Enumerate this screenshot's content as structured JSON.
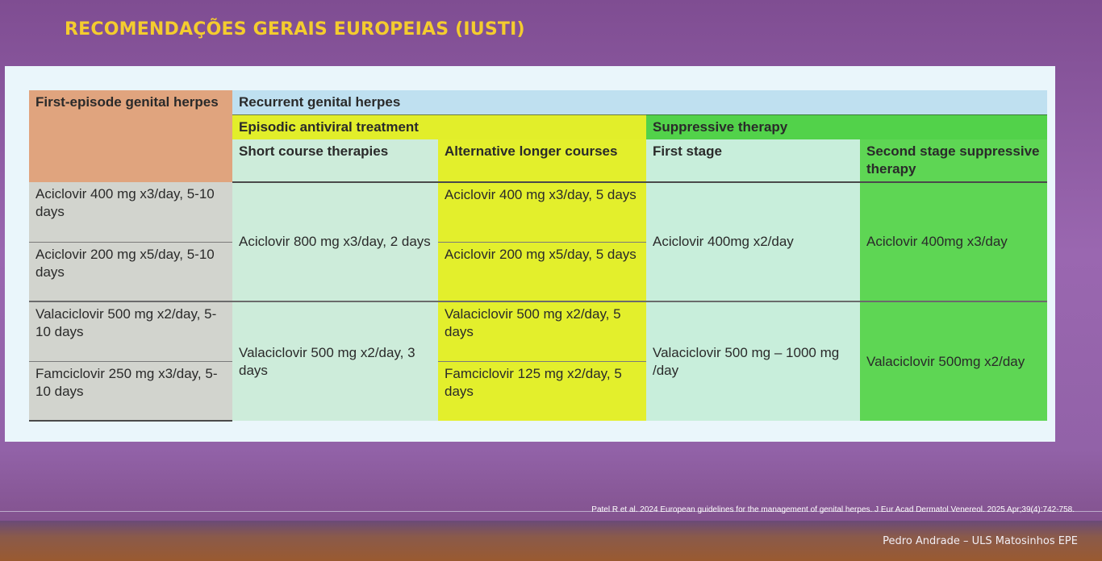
{
  "slide": {
    "title": "RECOMENDAÇÕES GERAIS EUROPEIAS (IUSTI)",
    "reference": "Patel R et al. 2024 European guidelines for the management of genital herpes. J Eur Acad Dermatol Venereol. 2025 Apr;39(4):742-758.",
    "author": "Pedro Andrade – ULS Matosinhos EPE"
  },
  "table": {
    "first_episode": "First-episode genital herpes",
    "recurrent": "Recurrent genital herpes",
    "episodic": "Episodic antiviral treatment",
    "suppressive": "Suppressive therapy",
    "short_course": "Short course therapies",
    "alternative": "Alternative longer courses",
    "first_stage": "First stage",
    "second_stage": "Second stage suppressive therapy",
    "rows": {
      "fe1": "Aciclovir 400 mg x3/day, 5-10 days",
      "fe2": "Aciclovir 200 mg x5/day, 5-10 days",
      "fe3": "Valaciclovir 500 mg x2/day, 5-10 days",
      "fe4": "Famciclovir 250 mg x3/day, 5-10 days",
      "sc1": "Aciclovir 800 mg x3/day, 2 days",
      "sc2": "Valaciclovir 500 mg x2/day, 3 days",
      "alt1": "Aciclovir 400 mg x3/day, 5 days",
      "alt2": "Aciclovir 200 mg x5/day, 5 days",
      "alt3": "Valaciclovir 500 mg x2/day, 5 days",
      "alt4": "Famciclovir 125 mg x2/day, 5 days",
      "fs1": "Aciclovir 400mg x2/day",
      "fs2": "Valaciclovir 500 mg – 1000 mg /day",
      "ss1": "Aciclovir 400mg x3/day",
      "ss2": "Valaciclovir 500mg x2/day"
    }
  }
}
